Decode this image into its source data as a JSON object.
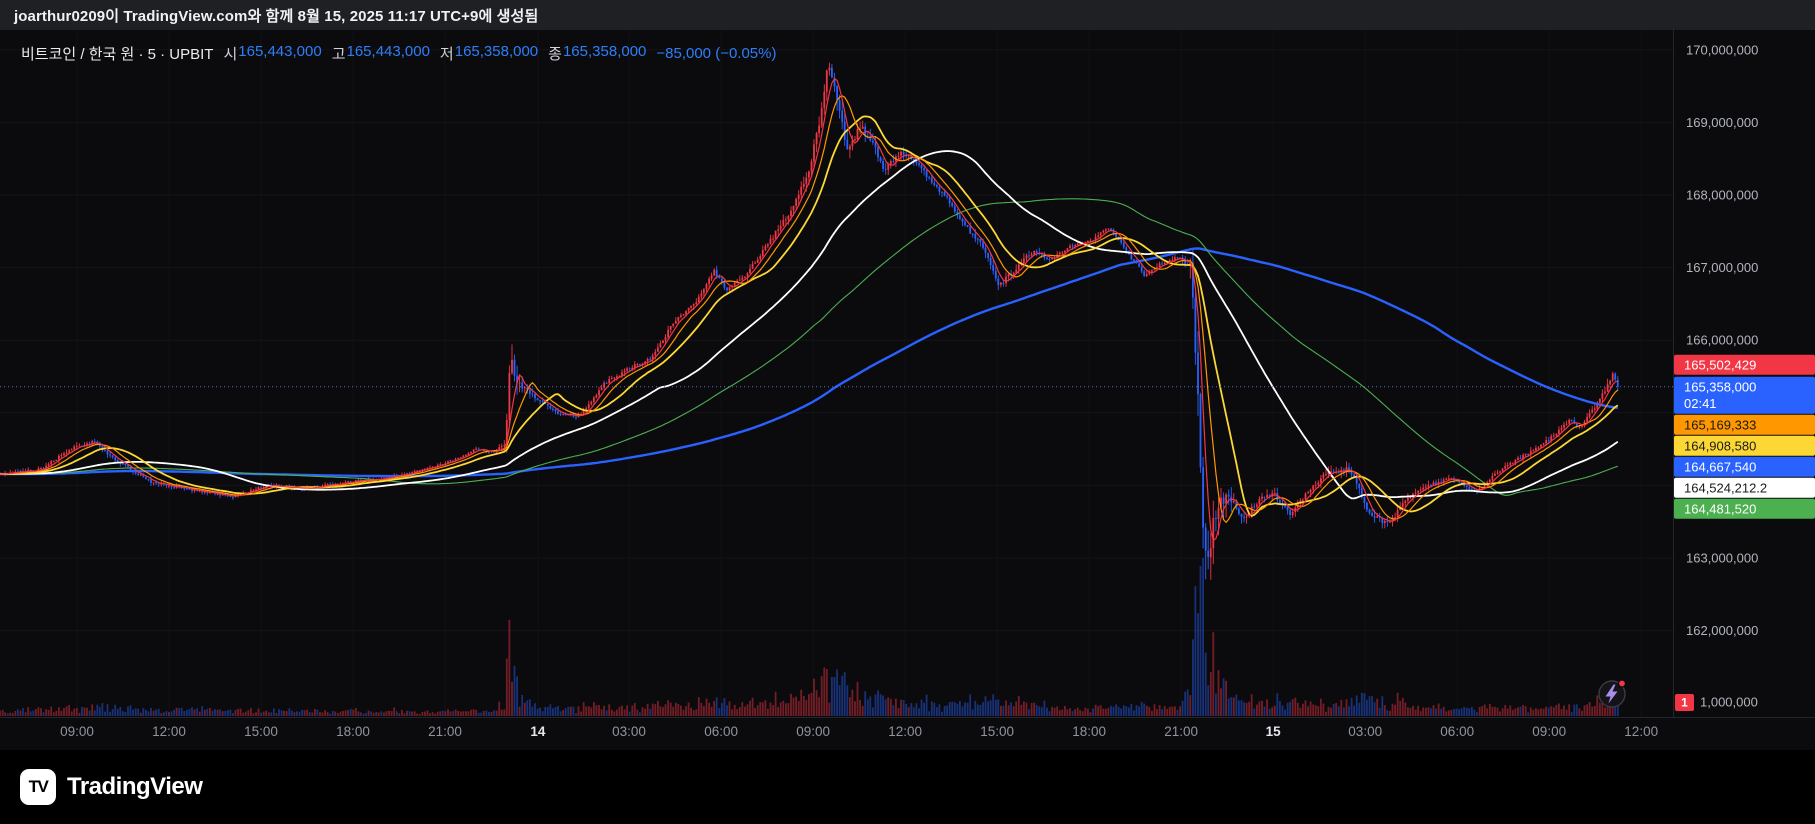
{
  "attribution": {
    "text": "joarthur0209이 TradingView.com와 함께 8월 15, 2025 11:17 UTC+9에 생성됨"
  },
  "header": {
    "symbol_title": "비트코인 / 한국 원 · 5 · UPBIT",
    "fields": [
      {
        "label": "시",
        "value": "165,443,000"
      },
      {
        "label": "고",
        "value": "165,443,000"
      },
      {
        "label": "저",
        "value": "165,358,000"
      },
      {
        "label": "종",
        "value": "165,358,000"
      }
    ],
    "change": "−85,000 (−0.05%)"
  },
  "footer": {
    "brand": "TradingView"
  },
  "icons": {
    "logo_mark": "TV",
    "flash_icon": "lightning-bolt"
  },
  "chart_data": {
    "type": "candlestick",
    "title": "비트코인 / 한국 원 · 5 · UPBIT",
    "exchange": "UPBIT",
    "interval_minutes": 5,
    "currency": "KRW",
    "ohlc": {
      "open": 165443000,
      "high": 165443000,
      "low": 165358000,
      "close": 165358000,
      "change": "−85,000",
      "change_pct": "−0.05%"
    },
    "countdown": "02:41",
    "colors": {
      "up": "#f23645",
      "down": "#2962ff",
      "volume_up": "rgba(242,54,69,0.45)",
      "volume_down": "rgba(41,98,255,0.45)",
      "last_price_line": "#5b7bd5",
      "axis_text": "#b2b5be",
      "grid": "#15151a",
      "header_value": "#2d7ff9"
    },
    "price_axis": {
      "gridline_prices_millions": [
        162,
        163,
        164,
        165,
        166,
        167,
        168,
        169,
        170
      ],
      "ticks": [
        {
          "text": "170,000,000",
          "price_millions": 170
        },
        {
          "text": "169,000,000",
          "price_millions": 169
        },
        {
          "text": "168,000,000",
          "price_millions": 168
        },
        {
          "text": "167,000,000",
          "price_millions": 167
        },
        {
          "text": "166,000,000",
          "price_millions": 166
        },
        {
          "text": "163,000,000",
          "price_millions": 163
        },
        {
          "text": "162,000,000",
          "price_millions": 162
        }
      ],
      "volume_tick": {
        "badge": "1",
        "text": "1,000,000"
      }
    },
    "time_axis": [
      {
        "text": "09:00",
        "t": 0.046,
        "major": false
      },
      {
        "text": "12:00",
        "t": 0.101,
        "major": false
      },
      {
        "text": "15:00",
        "t": 0.156,
        "major": false
      },
      {
        "text": "18:00",
        "t": 0.211,
        "major": false
      },
      {
        "text": "21:00",
        "t": 0.266,
        "major": false
      },
      {
        "text": "14",
        "t": 0.3215,
        "major": true
      },
      {
        "text": "03:00",
        "t": 0.376,
        "major": false
      },
      {
        "text": "06:00",
        "t": 0.431,
        "major": false
      },
      {
        "text": "09:00",
        "t": 0.486,
        "major": false
      },
      {
        "text": "12:00",
        "t": 0.541,
        "major": false
      },
      {
        "text": "15:00",
        "t": 0.596,
        "major": false
      },
      {
        "text": "18:00",
        "t": 0.651,
        "major": false
      },
      {
        "text": "21:00",
        "t": 0.706,
        "major": false
      },
      {
        "text": "15",
        "t": 0.761,
        "major": true
      },
      {
        "text": "03:00",
        "t": 0.816,
        "major": false
      },
      {
        "text": "06:00",
        "t": 0.871,
        "major": false
      },
      {
        "text": "09:00",
        "t": 0.926,
        "major": false
      },
      {
        "text": "12:00",
        "t": 0.981,
        "major": false
      }
    ],
    "price_flags": [
      {
        "kind": "ma",
        "text": "165,502,429",
        "bg": "#f23645",
        "fg": "#ffffff"
      },
      {
        "kind": "last",
        "text": "165,358,000",
        "countdown": "02:41",
        "bg": "#2962ff",
        "fg": "#ffffff"
      },
      {
        "kind": "ma",
        "text": "165,169,333",
        "bg": "#ff9800",
        "fg": "#1a1a1a"
      },
      {
        "kind": "ma",
        "text": "164,908,580",
        "bg": "#fdd835",
        "fg": "#1a1a1a"
      },
      {
        "kind": "ma",
        "text": "164,667,540",
        "bg": "#2962ff",
        "fg": "#ffffff"
      },
      {
        "kind": "ma",
        "text": "164,524,212.2",
        "bg": "#ffffff",
        "fg": "#1a1a1a"
      },
      {
        "kind": "ma",
        "text": "164,481,520",
        "bg": "#4caf50",
        "fg": "#ffffff"
      }
    ],
    "moving_averages": [
      {
        "period": 5,
        "color": "#f23645",
        "width": 1.2
      },
      {
        "period": 10,
        "color": "#ff9800",
        "width": 1.2
      },
      {
        "period": 20,
        "color": "#fdd835",
        "width": 1.8
      },
      {
        "period": 60,
        "color": "#ffffff",
        "width": 1.8
      },
      {
        "period": 120,
        "color": "#4caf50",
        "width": 1.1
      },
      {
        "period": 240,
        "color": "#2962ff",
        "width": 2.4
      }
    ],
    "candle_count": 633,
    "span_fraction": 0.967,
    "seed": 20250815,
    "price_path_millions": [
      [
        0.0,
        164.15
      ],
      [
        0.024,
        164.22
      ],
      [
        0.044,
        164.52
      ],
      [
        0.056,
        164.6
      ],
      [
        0.069,
        164.35
      ],
      [
        0.09,
        164.05
      ],
      [
        0.111,
        163.95
      ],
      [
        0.139,
        163.85
      ],
      [
        0.16,
        164.0
      ],
      [
        0.181,
        163.95
      ],
      [
        0.208,
        164.05
      ],
      [
        0.229,
        164.1
      ],
      [
        0.25,
        164.2
      ],
      [
        0.271,
        164.35
      ],
      [
        0.285,
        164.5
      ],
      [
        0.296,
        164.45
      ],
      [
        0.302,
        164.6
      ],
      [
        0.3055,
        165.85
      ],
      [
        0.309,
        165.4
      ],
      [
        0.318,
        165.25
      ],
      [
        0.333,
        165.0
      ],
      [
        0.347,
        164.95
      ],
      [
        0.361,
        165.4
      ],
      [
        0.375,
        165.6
      ],
      [
        0.389,
        165.75
      ],
      [
        0.403,
        166.25
      ],
      [
        0.417,
        166.55
      ],
      [
        0.427,
        166.95
      ],
      [
        0.434,
        166.7
      ],
      [
        0.444,
        166.85
      ],
      [
        0.458,
        167.3
      ],
      [
        0.472,
        167.75
      ],
      [
        0.483,
        168.3
      ],
      [
        0.49,
        169.0
      ],
      [
        0.495,
        169.85
      ],
      [
        0.5,
        169.3
      ],
      [
        0.507,
        168.6
      ],
      [
        0.514,
        168.95
      ],
      [
        0.521,
        168.75
      ],
      [
        0.528,
        168.35
      ],
      [
        0.538,
        168.6
      ],
      [
        0.549,
        168.45
      ],
      [
        0.556,
        168.2
      ],
      [
        0.566,
        167.95
      ],
      [
        0.576,
        167.6
      ],
      [
        0.587,
        167.3
      ],
      [
        0.597,
        166.75
      ],
      [
        0.608,
        167.0
      ],
      [
        0.618,
        167.25
      ],
      [
        0.628,
        167.1
      ],
      [
        0.639,
        167.3
      ],
      [
        0.651,
        167.35
      ],
      [
        0.663,
        167.55
      ],
      [
        0.674,
        167.2
      ],
      [
        0.684,
        166.9
      ],
      [
        0.694,
        167.05
      ],
      [
        0.705,
        167.15
      ],
      [
        0.712,
        167.0
      ],
      [
        0.716,
        165.2
      ],
      [
        0.719,
        163.6
      ],
      [
        0.722,
        162.9
      ],
      [
        0.726,
        163.6
      ],
      [
        0.733,
        163.9
      ],
      [
        0.743,
        163.55
      ],
      [
        0.753,
        163.8
      ],
      [
        0.761,
        163.9
      ],
      [
        0.771,
        163.6
      ],
      [
        0.781,
        163.9
      ],
      [
        0.792,
        164.15
      ],
      [
        0.806,
        164.25
      ],
      [
        0.819,
        163.6
      ],
      [
        0.83,
        163.45
      ],
      [
        0.84,
        163.8
      ],
      [
        0.854,
        164.0
      ],
      [
        0.868,
        164.1
      ],
      [
        0.882,
        163.9
      ],
      [
        0.896,
        164.2
      ],
      [
        0.91,
        164.4
      ],
      [
        0.924,
        164.6
      ],
      [
        0.938,
        164.9
      ],
      [
        0.944,
        164.8
      ],
      [
        0.951,
        165.0
      ],
      [
        0.958,
        165.25
      ],
      [
        0.964,
        165.55
      ],
      [
        0.967,
        165.36
      ]
    ],
    "volatility_millions": [
      [
        0.0,
        0.06
      ],
      [
        0.04,
        0.09
      ],
      [
        0.1,
        0.07
      ],
      [
        0.2,
        0.06
      ],
      [
        0.29,
        0.05
      ],
      [
        0.301,
        0.1
      ],
      [
        0.306,
        0.42
      ],
      [
        0.312,
        0.16
      ],
      [
        0.33,
        0.08
      ],
      [
        0.4,
        0.1
      ],
      [
        0.46,
        0.12
      ],
      [
        0.488,
        0.2
      ],
      [
        0.497,
        0.3
      ],
      [
        0.51,
        0.2
      ],
      [
        0.55,
        0.12
      ],
      [
        0.6,
        0.13
      ],
      [
        0.66,
        0.08
      ],
      [
        0.705,
        0.09
      ],
      [
        0.7135,
        0.4
      ],
      [
        0.72,
        0.7
      ],
      [
        0.727,
        0.45
      ],
      [
        0.74,
        0.16
      ],
      [
        0.78,
        0.12
      ],
      [
        0.82,
        0.16
      ],
      [
        0.85,
        0.1
      ],
      [
        0.9,
        0.08
      ],
      [
        0.94,
        0.09
      ],
      [
        0.961,
        0.13
      ],
      [
        0.967,
        0.1
      ]
    ]
  }
}
